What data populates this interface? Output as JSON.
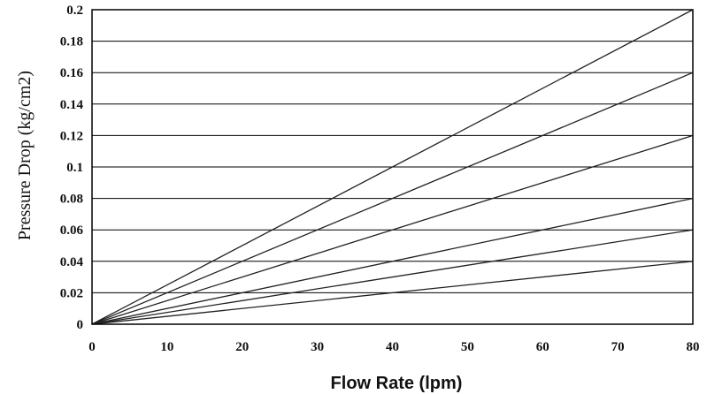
{
  "chart_data": {
    "type": "line",
    "xlabel": "Flow Rate (lpm)",
    "ylabel": "Pressure Drop (kg/cm2)",
    "xlim": [
      0,
      80
    ],
    "ylim": [
      0,
      0.2
    ],
    "x_ticks": [
      0,
      10,
      20,
      30,
      40,
      50,
      60,
      70,
      80
    ],
    "x_tick_labels": [
      "0",
      "10",
      "20",
      "30",
      "40",
      "50",
      "60",
      "70",
      "80"
    ],
    "y_ticks": [
      0,
      0.02,
      0.04,
      0.06,
      0.08,
      0.1,
      0.12,
      0.14,
      0.16,
      0.18,
      0.2
    ],
    "y_tick_labels": [
      "0",
      "0.02",
      "0.04",
      "0.06",
      "0.08",
      "0.1",
      "0.12",
      "0.14",
      "0.16",
      "0.18",
      "0.2"
    ],
    "grid": "horizontal",
    "line_color": "#222222",
    "series": [
      {
        "x": [
          0,
          80
        ],
        "y": [
          0,
          0.2
        ]
      },
      {
        "x": [
          0,
          80
        ],
        "y": [
          0,
          0.16
        ]
      },
      {
        "x": [
          0,
          80
        ],
        "y": [
          0,
          0.12
        ]
      },
      {
        "x": [
          0,
          80
        ],
        "y": [
          0,
          0.08
        ]
      },
      {
        "x": [
          0,
          80
        ],
        "y": [
          0,
          0.06
        ]
      },
      {
        "x": [
          0,
          80
        ],
        "y": [
          0,
          0.04
        ]
      }
    ]
  }
}
